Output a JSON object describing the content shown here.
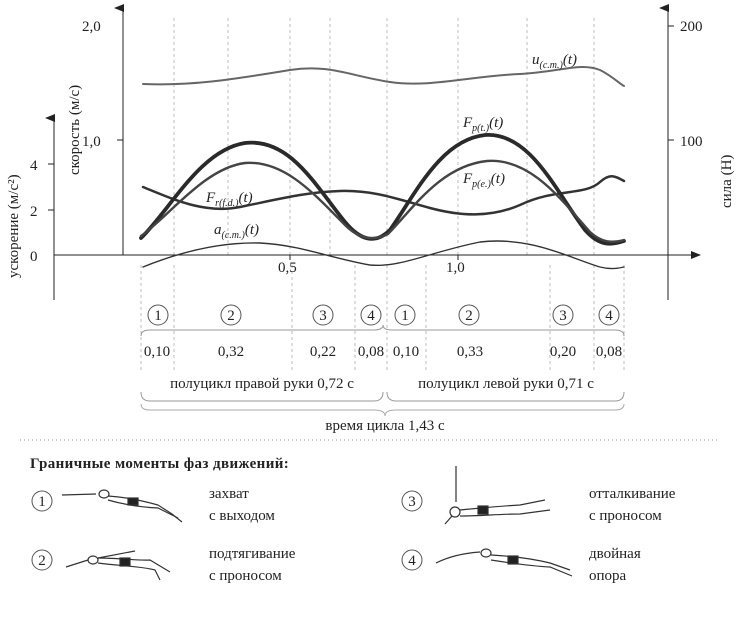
{
  "axes": {
    "velocity_label": "скорость (м/с)",
    "velocity_ticks": [
      "2,0",
      "1,0"
    ],
    "acceleration_label": "ускорение (м/с²)",
    "acceleration_ticks": [
      "4",
      "2",
      "0"
    ],
    "force_label": "сила (Н)",
    "force_ticks": [
      "200",
      "100"
    ],
    "time_ticks": [
      "0,5",
      "1,0"
    ]
  },
  "curve_labels": {
    "u": {
      "main": "u",
      "sub": "(c.m.)",
      "arg": "(t)"
    },
    "fpt": {
      "main": "F",
      "sub": "p(t.)",
      "arg": "(t)"
    },
    "fpe": {
      "main": "F",
      "sub": "p(e.)",
      "arg": "(t)"
    },
    "frfd": {
      "main": "F",
      "sub": "r(f.d.)",
      "arg": "(t)"
    },
    "acm": {
      "main": "a",
      "sub": "(c.m.)",
      "arg": "(t)"
    }
  },
  "phases": {
    "numbers": [
      "1",
      "2",
      "3",
      "4",
      "1",
      "2",
      "3",
      "4"
    ],
    "durations": [
      "0,10",
      "0,32",
      "0,22",
      "0,08",
      "0,10",
      "0,33",
      "0,20",
      "0,08"
    ]
  },
  "halfcycles": {
    "right": "полуцикл правой руки 0,72 с",
    "left": "полуцикл левой руки 0,71 с",
    "total": "время цикла 1,43 с"
  },
  "legend": {
    "title": "Граничные моменты фаз движений:",
    "items": [
      {
        "num": "1",
        "line1": "захват",
        "line2": "с выходом"
      },
      {
        "num": "2",
        "line1": "подтягивание",
        "line2": "с проносом"
      },
      {
        "num": "3",
        "line1": "отталкивание",
        "line2": "с проносом"
      },
      {
        "num": "4",
        "line1": "двойная",
        "line2": "опора"
      }
    ]
  },
  "colors": {
    "thick": "#2a2a2a",
    "medium": "#555555",
    "light": "#777777",
    "grid": "#bdbdbd"
  }
}
